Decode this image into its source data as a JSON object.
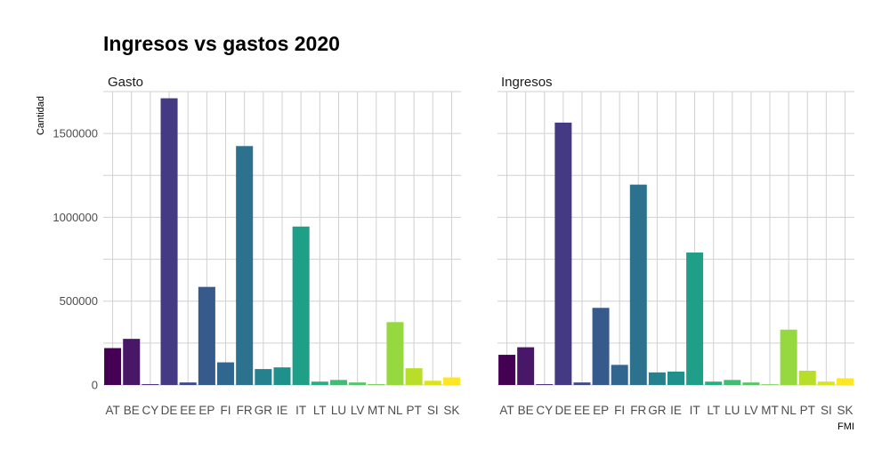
{
  "chart_data": {
    "type": "bar",
    "title": "Ingresos vs gastos 2020",
    "xlabel": "FMI",
    "ylabel": "Cantidad",
    "ylim": [
      0,
      1750000
    ],
    "yticks": [
      0,
      500000,
      1000000,
      1500000
    ],
    "ytick_labels": [
      "0",
      "500000",
      "1000000",
      "1500000"
    ],
    "grid": true,
    "legend": "none",
    "categories": [
      "AT",
      "BE",
      "CY",
      "DE",
      "EE",
      "EP",
      "FI",
      "FR",
      "GR",
      "IE",
      "IT",
      "LT",
      "LU",
      "LV",
      "MT",
      "NL",
      "PT",
      "SI",
      "SK"
    ],
    "colors": [
      "#440154",
      "#481768",
      "#482878",
      "#443983",
      "#3E4989",
      "#375A8C",
      "#31678E",
      "#2C728E",
      "#26818E",
      "#20908D",
      "#1F9F88",
      "#29AF7F",
      "#40BD72",
      "#55C667",
      "#75D054",
      "#95D840",
      "#B8DE29",
      "#DCE318",
      "#FDE725"
    ],
    "panels": [
      {
        "name": "Gasto",
        "values": [
          220000,
          275000,
          5000,
          1710000,
          15000,
          585000,
          135000,
          1425000,
          95000,
          105000,
          945000,
          20000,
          30000,
          15000,
          5000,
          375000,
          100000,
          25000,
          45000
        ]
      },
      {
        "name": "Ingresos",
        "values": [
          180000,
          225000,
          5000,
          1565000,
          15000,
          460000,
          120000,
          1195000,
          75000,
          80000,
          790000,
          20000,
          30000,
          15000,
          0,
          330000,
          85000,
          20000,
          40000
        ]
      }
    ]
  }
}
